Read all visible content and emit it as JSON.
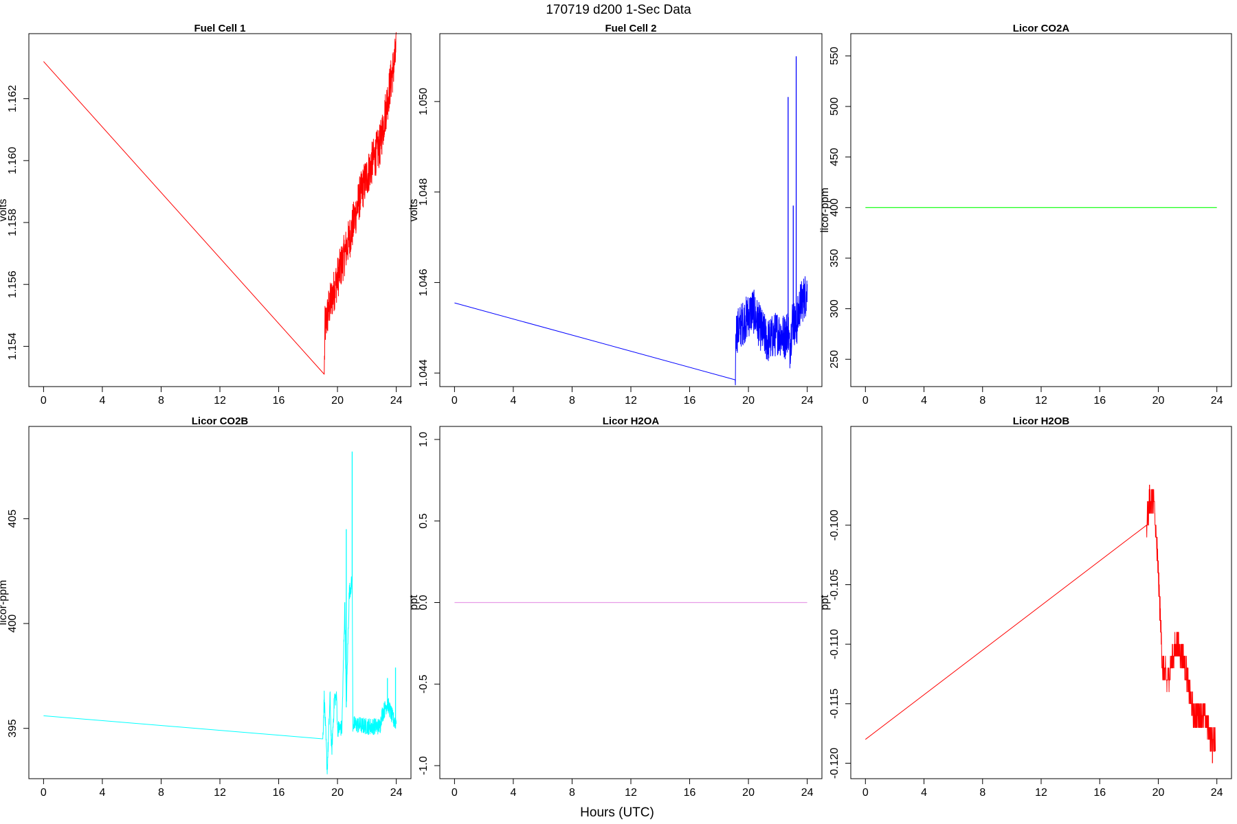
{
  "figure": {
    "title": "170719   d200   1-Sec Data",
    "xlabel": "Hours (UTC)"
  },
  "chart_data": [
    {
      "type": "line",
      "title": "Fuel Cell 1",
      "ylabel": "volts",
      "color": "#ff0000",
      "xlim": [
        -1,
        25
      ],
      "ylim": [
        1.1527,
        1.1641
      ],
      "xticks": [
        0,
        4,
        8,
        12,
        16,
        20,
        24
      ],
      "yticks": [
        1.154,
        1.156,
        1.158,
        1.16,
        1.162
      ],
      "ytick_labels": [
        "1.154",
        "1.156",
        "1.158",
        "1.160",
        "1.162"
      ],
      "series": [
        {
          "x": [
            0,
            19.1,
            19.15,
            19.4,
            20,
            20.5,
            21,
            21.5,
            22,
            22.5,
            22.9,
            23.2,
            23.6,
            24
          ],
          "y": [
            1.1632,
            1.1531,
            1.1546,
            1.1552,
            1.1562,
            1.157,
            1.1578,
            1.1588,
            1.1595,
            1.1601,
            1.1605,
            1.1614,
            1.1625,
            1.1635
          ],
          "noise": 0.0007
        }
      ]
    },
    {
      "type": "line",
      "title": "Fuel Cell 2",
      "ylabel": "volts",
      "color": "#0000ff",
      "xlim": [
        -1,
        25
      ],
      "ylim": [
        1.0437,
        1.0515
      ],
      "xticks": [
        0,
        4,
        8,
        12,
        16,
        20,
        24
      ],
      "yticks": [
        1.044,
        1.046,
        1.048,
        1.05
      ],
      "ytick_labels": [
        "1.044",
        "1.046",
        "1.048",
        "1.050"
      ],
      "series": [
        {
          "x": [
            0,
            19.1,
            19.15,
            19.6,
            20.3,
            20.8,
            21.3,
            22,
            22.5,
            22.7,
            22.8,
            23.0,
            23.25,
            23.5,
            24
          ],
          "y": [
            1.04555,
            1.04385,
            1.0449,
            1.0451,
            1.0454,
            1.045,
            1.0447,
            1.0449,
            1.0448,
            1.045,
            1.0445,
            1.0452,
            1.045,
            1.0455,
            1.0458
          ],
          "noise": 0.0005,
          "spikes": [
            [
              22.7,
              1.0501
            ],
            [
              23.25,
              1.051
            ],
            [
              23.05,
              1.0477
            ]
          ]
        }
      ]
    },
    {
      "type": "line",
      "title": "Licor CO2A",
      "ylabel": "licor-ppm",
      "color": "#00ff00",
      "xlim": [
        -1,
        25
      ],
      "ylim": [
        223,
        572
      ],
      "xticks": [
        0,
        4,
        8,
        12,
        16,
        20,
        24
      ],
      "yticks": [
        250,
        300,
        350,
        400,
        450,
        500,
        550
      ],
      "ytick_labels": [
        "250",
        "300",
        "350",
        "400",
        "450",
        "500",
        "550"
      ],
      "series": [
        {
          "x": [
            0,
            24
          ],
          "y": [
            400,
            400
          ],
          "noise": 0
        }
      ]
    },
    {
      "type": "line",
      "title": "Licor CO2B",
      "ylabel": "licor-ppm",
      "color": "#00ffff",
      "xlim": [
        -1,
        25
      ],
      "ylim": [
        392.6,
        409.4
      ],
      "xticks": [
        0,
        4,
        8,
        12,
        16,
        20,
        24
      ],
      "yticks": [
        395,
        400,
        405
      ],
      "ytick_labels": [
        "395",
        "400",
        "405"
      ],
      "series": [
        {
          "x": [
            0,
            19.0,
            19.1,
            19.3,
            19.5,
            19.6,
            19.8,
            19.95,
            20.0,
            20.3,
            20.5,
            20.6,
            20.8,
            21.0,
            21.05,
            22.0,
            22.9,
            23.0,
            23.4,
            23.8,
            24
          ],
          "y": [
            395.6,
            394.5,
            396.5,
            393.0,
            396.5,
            393.8,
            396.5,
            396.4,
            395.0,
            395.0,
            401.0,
            396.0,
            401.5,
            402.0,
            395.2,
            395.1,
            395.1,
            395.6,
            396.2,
            395.4,
            395.3
          ],
          "noise": 0.4,
          "spikes": [
            [
              20.6,
              404.5
            ],
            [
              21.0,
              408.2
            ],
            [
              23.95,
              397.9
            ],
            [
              23.4,
              397.4
            ]
          ]
        }
      ]
    },
    {
      "type": "line",
      "title": "Licor H2OA",
      "ylabel": "ppt",
      "color": "#e69ae6",
      "xlim": [
        -1,
        25
      ],
      "ylim": [
        -1.08,
        1.08
      ],
      "xticks": [
        0,
        4,
        8,
        12,
        16,
        20,
        24
      ],
      "yticks": [
        -1.0,
        -0.5,
        0.0,
        0.5,
        1.0
      ],
      "ytick_labels": [
        "-1.0",
        "-0.5",
        "0.0",
        "0.5",
        "1.0"
      ],
      "series": [
        {
          "x": [
            0,
            24
          ],
          "y": [
            0,
            0
          ],
          "noise": 0
        }
      ]
    },
    {
      "type": "line",
      "title": "Licor H2OB",
      "ylabel": "ppt",
      "color": "#ff0000",
      "xlim": [
        -1,
        25
      ],
      "ylim": [
        -0.1213,
        -0.0917
      ],
      "xticks": [
        0,
        4,
        8,
        12,
        16,
        20,
        24
      ],
      "yticks": [
        -0.12,
        -0.115,
        -0.11,
        -0.105,
        -0.1
      ],
      "ytick_labels": [
        "-0.120",
        "-0.115",
        "-0.110",
        "-0.105",
        "-0.100"
      ],
      "series": [
        {
          "x": [
            0,
            19.2,
            19.4,
            19.7,
            20.0,
            20.3,
            20.6,
            21.0,
            21.3,
            21.7,
            22.0,
            22.4,
            22.8,
            23.2,
            23.6,
            23.9
          ],
          "y": [
            -0.118,
            -0.1,
            -0.098,
            -0.098,
            -0.104,
            -0.112,
            -0.113,
            -0.111,
            -0.11,
            -0.111,
            -0.113,
            -0.116,
            -0.116,
            -0.116,
            -0.118,
            -0.118
          ],
          "noise": 0.0012,
          "step": 0.001,
          "spikes": [
            [
              19.4,
              -0.0966
            ],
            [
              23.7,
              -0.12
            ]
          ]
        }
      ]
    }
  ]
}
